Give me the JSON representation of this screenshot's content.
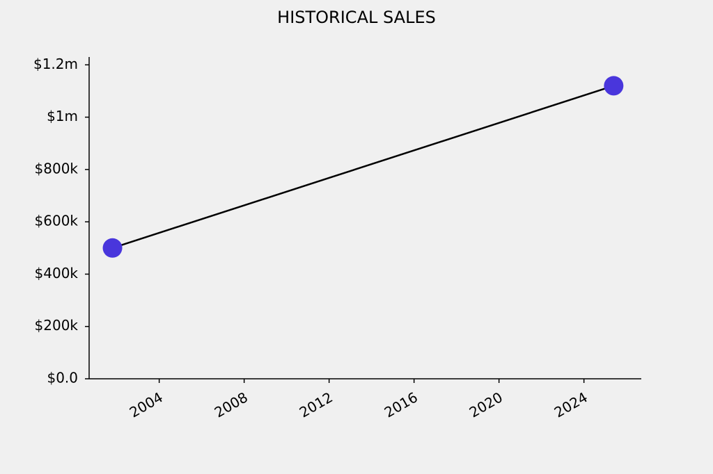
{
  "chart_data": {
    "type": "line",
    "title": "HISTORICAL SALES",
    "x": [
      2001.8,
      2025.4
    ],
    "values": [
      500000,
      1120000
    ],
    "color": "#4936dc",
    "line_color": "#000000",
    "xlim": [
      2000.7,
      2026.7
    ],
    "xticks": [
      2004,
      2008,
      2012,
      2016,
      2020,
      2024
    ],
    "ylim": [
      0,
      1230000
    ],
    "yticks": [
      {
        "value": 0,
        "label": "$0.0"
      },
      {
        "value": 200000,
        "label": "$200k"
      },
      {
        "value": 400000,
        "label": "$400k"
      },
      {
        "value": 600000,
        "label": "$600k"
      },
      {
        "value": 800000,
        "label": "$800k"
      },
      {
        "value": 1000000,
        "label": "$1m"
      },
      {
        "value": 1200000,
        "label": "$1.2m"
      }
    ],
    "grid": false
  }
}
